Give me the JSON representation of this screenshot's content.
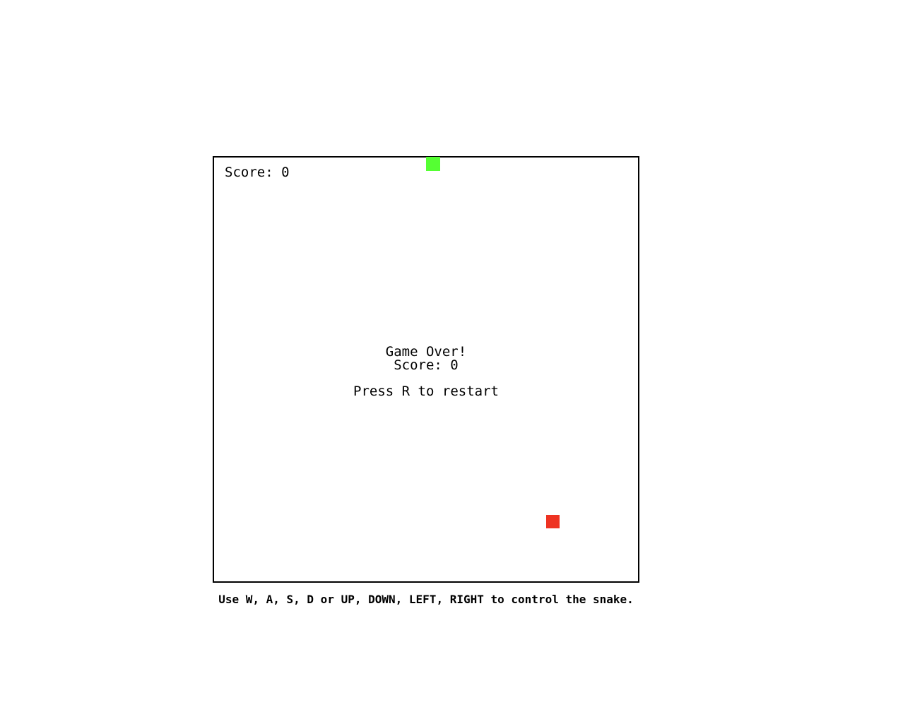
{
  "hud": {
    "score_text": "Score: 0"
  },
  "game_over": {
    "title": "Game Over!",
    "score_text": "Score: 0",
    "restart_hint": "Press R to restart"
  },
  "instructions": "Use W, A, S, D or UP, DOWN, LEFT, RIGHT to control the snake.",
  "colors": {
    "snake": "#55ff33",
    "food": "#ee3322",
    "board_border": "#000000",
    "background": "#ffffff"
  }
}
